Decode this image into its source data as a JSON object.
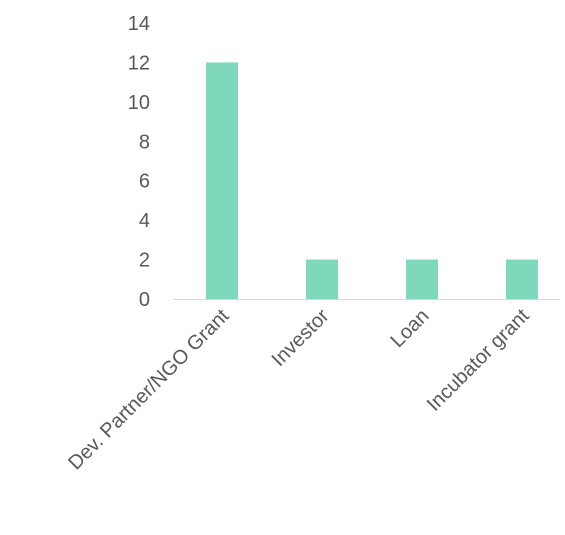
{
  "chart_data": {
    "type": "bar",
    "title": "",
    "xlabel": "",
    "ylabel": "",
    "categories": [
      "Dev. Partner/NGO Grant",
      "Investor",
      "Loan",
      "Incubator grant"
    ],
    "values": [
      12,
      2,
      2,
      2
    ],
    "ylim": [
      0,
      14
    ],
    "yticks": [
      0,
      2,
      4,
      6,
      8,
      10,
      12,
      14
    ],
    "ytick_labels": [
      "0",
      "2",
      "4",
      "6",
      "8",
      "10",
      "12",
      "14"
    ],
    "grid": false,
    "legend": "none",
    "colors": {
      "bar": "#7fd8bb",
      "axis": "#d9d9d9",
      "text": "#595959"
    }
  }
}
